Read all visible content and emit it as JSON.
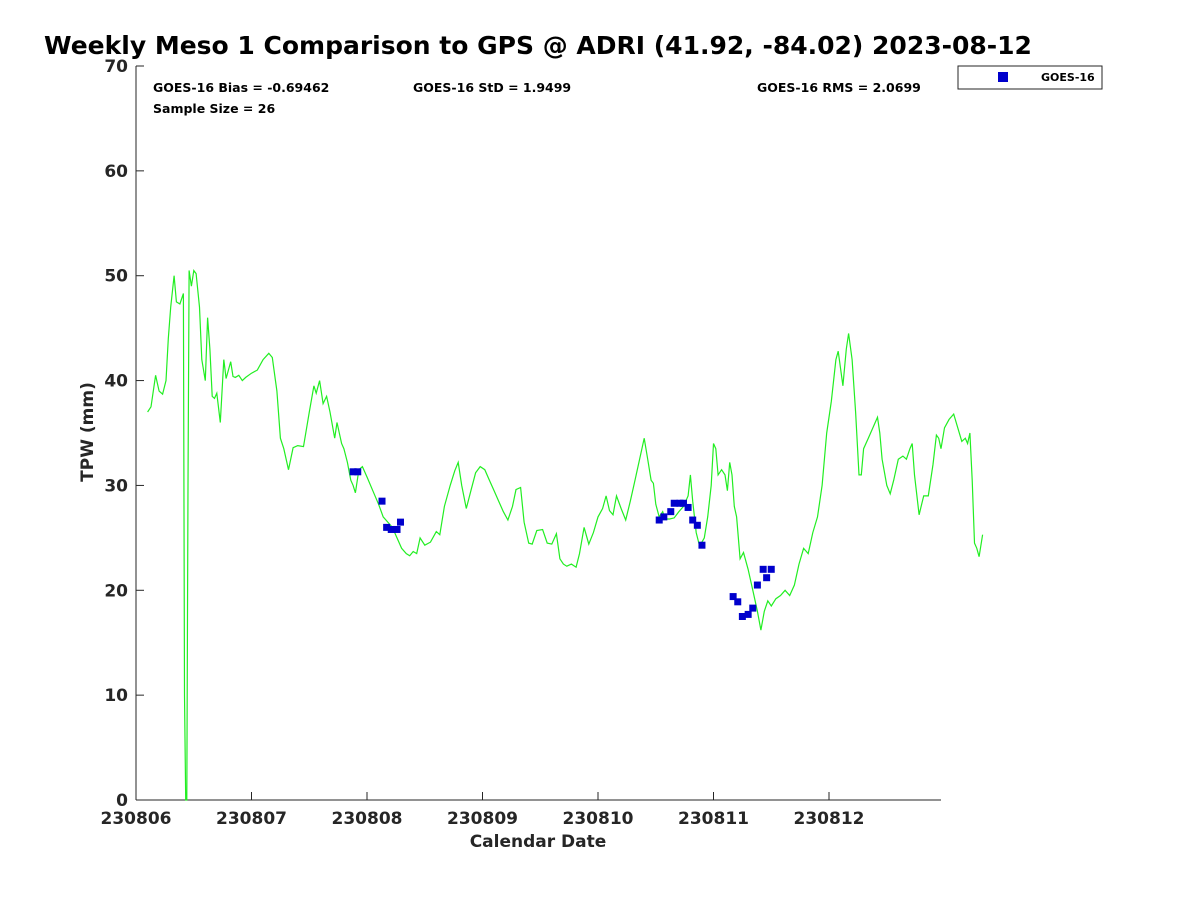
{
  "chart_data": {
    "type": "line",
    "title": "Weekly Meso 1 Comparison to GPS @ ADRI (41.92, -84.02) 2023-08-12",
    "xlabel": "Calendar Date",
    "ylabel": "TPW (mm)",
    "xlim": [
      0,
      6.97
    ],
    "ylim": [
      0,
      70
    ],
    "x_tick_values": [
      0,
      1,
      2,
      3,
      4,
      5,
      6
    ],
    "x_tick_labels": [
      "230806",
      "230807",
      "230808",
      "230809",
      "230810",
      "230811",
      "230812"
    ],
    "y_tick_values": [
      0,
      10,
      20,
      30,
      40,
      50,
      60,
      70
    ],
    "y_tick_labels": [
      "0",
      "10",
      "20",
      "30",
      "40",
      "50",
      "60",
      "70"
    ],
    "stats": {
      "bias": "GOES-16 Bias = -0.69462",
      "std": "GOES-16 StD = 1.9499",
      "rms": "GOES-16 RMS = 2.0699",
      "sample": "Sample Size = 26"
    },
    "legend": {
      "label": "GOES-16",
      "color": "#0000cc",
      "position": "top-right outside"
    },
    "series": [
      {
        "name": "GPS",
        "color": "#22ee22",
        "points": [
          [
            0.1,
            37.0
          ],
          [
            0.13,
            37.5
          ],
          [
            0.17,
            40.5
          ],
          [
            0.2,
            39.0
          ],
          [
            0.23,
            38.7
          ],
          [
            0.26,
            40.0
          ],
          [
            0.28,
            44.0
          ],
          [
            0.3,
            47.0
          ],
          [
            0.33,
            50.0
          ],
          [
            0.35,
            47.5
          ],
          [
            0.38,
            47.3
          ],
          [
            0.41,
            48.3
          ],
          [
            0.42,
            10.0
          ],
          [
            0.43,
            0.0
          ],
          [
            0.44,
            0.0
          ],
          [
            0.45,
            30.0
          ],
          [
            0.46,
            50.5
          ],
          [
            0.48,
            49.0
          ],
          [
            0.5,
            50.5
          ],
          [
            0.52,
            50.2
          ],
          [
            0.55,
            47.0
          ],
          [
            0.57,
            42.0
          ],
          [
            0.6,
            40.0
          ],
          [
            0.62,
            46.0
          ],
          [
            0.64,
            43.0
          ],
          [
            0.66,
            38.5
          ],
          [
            0.68,
            38.3
          ],
          [
            0.7,
            38.8
          ],
          [
            0.73,
            36.0
          ],
          [
            0.76,
            42.0
          ],
          [
            0.78,
            40.2
          ],
          [
            0.8,
            41.0
          ],
          [
            0.82,
            41.8
          ],
          [
            0.84,
            40.4
          ],
          [
            0.86,
            40.3
          ],
          [
            0.89,
            40.5
          ],
          [
            0.92,
            40.0
          ],
          [
            0.95,
            40.3
          ],
          [
            1.0,
            40.7
          ],
          [
            1.05,
            41.0
          ],
          [
            1.1,
            42.0
          ],
          [
            1.15,
            42.6
          ],
          [
            1.18,
            42.2
          ],
          [
            1.22,
            39.0
          ],
          [
            1.25,
            34.5
          ],
          [
            1.28,
            33.5
          ],
          [
            1.32,
            31.5
          ],
          [
            1.36,
            33.6
          ],
          [
            1.4,
            33.8
          ],
          [
            1.45,
            33.7
          ],
          [
            1.5,
            37.0
          ],
          [
            1.54,
            39.5
          ],
          [
            1.56,
            38.8
          ],
          [
            1.59,
            40.0
          ],
          [
            1.62,
            37.8
          ],
          [
            1.65,
            38.5
          ],
          [
            1.68,
            37.0
          ],
          [
            1.72,
            34.5
          ],
          [
            1.74,
            36.0
          ],
          [
            1.78,
            34.0
          ],
          [
            1.8,
            33.5
          ],
          [
            1.83,
            32.2
          ],
          [
            1.86,
            30.5
          ],
          [
            1.88,
            30.0
          ],
          [
            1.9,
            29.3
          ],
          [
            1.93,
            31.5
          ],
          [
            1.96,
            31.8
          ],
          [
            2.0,
            30.8
          ],
          [
            2.05,
            29.5
          ],
          [
            2.1,
            28.2
          ],
          [
            2.14,
            27.0
          ],
          [
            2.18,
            26.5
          ],
          [
            2.22,
            26.0
          ],
          [
            2.26,
            25.0
          ],
          [
            2.3,
            24.0
          ],
          [
            2.34,
            23.5
          ],
          [
            2.37,
            23.3
          ],
          [
            2.4,
            23.7
          ],
          [
            2.43,
            23.5
          ],
          [
            2.46,
            25.0
          ],
          [
            2.5,
            24.3
          ],
          [
            2.55,
            24.6
          ],
          [
            2.6,
            25.6
          ],
          [
            2.63,
            25.3
          ],
          [
            2.67,
            28.0
          ],
          [
            2.72,
            30.0
          ],
          [
            2.76,
            31.4
          ],
          [
            2.79,
            32.2
          ],
          [
            2.82,
            30.0
          ],
          [
            2.86,
            27.8
          ],
          [
            2.9,
            29.5
          ],
          [
            2.94,
            31.2
          ],
          [
            2.98,
            31.8
          ],
          [
            3.02,
            31.5
          ],
          [
            3.06,
            30.5
          ],
          [
            3.1,
            29.5
          ],
          [
            3.14,
            28.5
          ],
          [
            3.18,
            27.5
          ],
          [
            3.22,
            26.7
          ],
          [
            3.26,
            28.0
          ],
          [
            3.29,
            29.6
          ],
          [
            3.33,
            29.8
          ],
          [
            3.36,
            26.5
          ],
          [
            3.4,
            24.5
          ],
          [
            3.43,
            24.4
          ],
          [
            3.47,
            25.7
          ],
          [
            3.52,
            25.8
          ],
          [
            3.56,
            24.5
          ],
          [
            3.6,
            24.4
          ],
          [
            3.64,
            25.4
          ],
          [
            3.67,
            23.0
          ],
          [
            3.7,
            22.5
          ],
          [
            3.73,
            22.3
          ],
          [
            3.77,
            22.5
          ],
          [
            3.81,
            22.2
          ],
          [
            3.84,
            23.5
          ],
          [
            3.88,
            26.0
          ],
          [
            3.92,
            24.4
          ],
          [
            3.96,
            25.5
          ],
          [
            4.0,
            27.0
          ],
          [
            4.04,
            27.8
          ],
          [
            4.07,
            29.0
          ],
          [
            4.1,
            27.6
          ],
          [
            4.13,
            27.2
          ],
          [
            4.16,
            29.0
          ],
          [
            4.2,
            27.8
          ],
          [
            4.24,
            26.7
          ],
          [
            4.28,
            28.5
          ],
          [
            4.32,
            30.5
          ],
          [
            4.36,
            32.5
          ],
          [
            4.4,
            34.5
          ],
          [
            4.43,
            32.5
          ],
          [
            4.46,
            30.5
          ],
          [
            4.48,
            30.2
          ],
          [
            4.5,
            28.2
          ],
          [
            4.53,
            27.0
          ],
          [
            4.56,
            27.5
          ],
          [
            4.58,
            26.8
          ],
          [
            4.62,
            26.8
          ],
          [
            4.66,
            26.9
          ],
          [
            4.7,
            27.5
          ],
          [
            4.74,
            28.0
          ],
          [
            4.78,
            29.0
          ],
          [
            4.8,
            31.0
          ],
          [
            4.82,
            28.5
          ],
          [
            4.85,
            25.5
          ],
          [
            4.88,
            24.2
          ],
          [
            4.92,
            25.0
          ],
          [
            4.95,
            27.0
          ],
          [
            4.98,
            30.0
          ],
          [
            5.0,
            34.0
          ],
          [
            5.02,
            33.5
          ],
          [
            5.04,
            31.0
          ],
          [
            5.07,
            31.5
          ],
          [
            5.1,
            31.0
          ],
          [
            5.12,
            29.5
          ],
          [
            5.14,
            32.2
          ],
          [
            5.16,
            31.0
          ],
          [
            5.18,
            28.0
          ],
          [
            5.2,
            27.0
          ],
          [
            5.23,
            23.0
          ],
          [
            5.26,
            23.6
          ],
          [
            5.3,
            22.0
          ],
          [
            5.34,
            20.0
          ],
          [
            5.38,
            18.0
          ],
          [
            5.41,
            16.2
          ],
          [
            5.44,
            18.0
          ],
          [
            5.47,
            19.0
          ],
          [
            5.5,
            18.5
          ],
          [
            5.54,
            19.2
          ],
          [
            5.58,
            19.5
          ],
          [
            5.62,
            20.0
          ],
          [
            5.66,
            19.5
          ],
          [
            5.7,
            20.5
          ],
          [
            5.74,
            22.5
          ],
          [
            5.78,
            24.0
          ],
          [
            5.82,
            23.5
          ],
          [
            5.86,
            25.5
          ],
          [
            5.9,
            27.0
          ],
          [
            5.94,
            30.0
          ],
          [
            5.98,
            35.0
          ],
          [
            6.02,
            38.0
          ],
          [
            6.06,
            42.0
          ],
          [
            6.08,
            42.8
          ],
          [
            6.12,
            39.5
          ],
          [
            6.15,
            43.0
          ],
          [
            6.17,
            44.5
          ],
          [
            6.2,
            42.0
          ],
          [
            6.23,
            37.0
          ],
          [
            6.26,
            31.0
          ],
          [
            6.28,
            31.0
          ],
          [
            6.3,
            33.5
          ],
          [
            6.34,
            34.5
          ],
          [
            6.38,
            35.5
          ],
          [
            6.42,
            36.5
          ],
          [
            6.44,
            35.0
          ],
          [
            6.46,
            32.5
          ],
          [
            6.5,
            30.0
          ],
          [
            6.53,
            29.2
          ],
          [
            6.56,
            30.5
          ],
          [
            6.6,
            32.5
          ],
          [
            6.64,
            32.8
          ],
          [
            6.67,
            32.5
          ],
          [
            6.7,
            33.5
          ],
          [
            6.72,
            34.0
          ],
          [
            6.74,
            31.0
          ],
          [
            6.78,
            27.2
          ],
          [
            6.82,
            29.0
          ],
          [
            6.86,
            29.0
          ],
          [
            6.9,
            32.0
          ],
          [
            6.93,
            34.8
          ],
          [
            6.95,
            34.5
          ],
          [
            6.97,
            33.5
          ],
          [
            7.0,
            35.5
          ],
          [
            7.04,
            36.3
          ],
          [
            7.08,
            36.8
          ],
          [
            7.12,
            35.3
          ],
          [
            7.15,
            34.2
          ],
          [
            7.18,
            34.5
          ],
          [
            7.2,
            34.0
          ],
          [
            7.22,
            35.0
          ],
          [
            7.24,
            30.5
          ],
          [
            7.26,
            24.5
          ],
          [
            7.28,
            24.0
          ],
          [
            7.3,
            23.2
          ],
          [
            7.33,
            25.3
          ]
        ]
      },
      {
        "name": "GOES-16",
        "marker": "square",
        "color": "#0000cc",
        "points": [
          [
            1.88,
            31.3
          ],
          [
            1.92,
            31.3
          ],
          [
            2.13,
            28.5
          ],
          [
            2.17,
            26.0
          ],
          [
            2.21,
            25.8
          ],
          [
            2.26,
            25.8
          ],
          [
            2.29,
            26.5
          ],
          [
            4.53,
            26.7
          ],
          [
            4.57,
            27.0
          ],
          [
            4.63,
            27.5
          ],
          [
            4.66,
            28.3
          ],
          [
            4.71,
            28.3
          ],
          [
            4.74,
            28.3
          ],
          [
            4.78,
            27.9
          ],
          [
            4.82,
            26.7
          ],
          [
            4.86,
            26.2
          ],
          [
            4.9,
            24.3
          ],
          [
            5.17,
            19.4
          ],
          [
            5.21,
            18.9
          ],
          [
            5.25,
            17.5
          ],
          [
            5.3,
            17.7
          ],
          [
            5.34,
            18.3
          ],
          [
            5.38,
            20.5
          ],
          [
            5.43,
            22.0
          ],
          [
            5.46,
            21.2
          ],
          [
            5.5,
            22.0
          ]
        ]
      }
    ]
  }
}
